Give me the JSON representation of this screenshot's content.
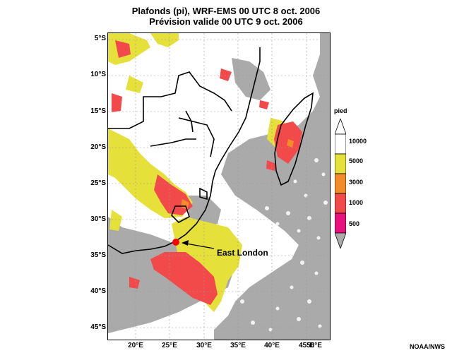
{
  "title": {
    "line1": "Plafonds (pi), WRF-EMS 00 UTC 8 oct. 2006",
    "line2": "Prévision valide 00 UTC 9 oct. 2006"
  },
  "axes": {
    "lat_labels": [
      "5°S",
      "10°S",
      "15°S",
      "20°S",
      "25°S",
      "30°S",
      "35°S",
      "40°S",
      "45°S"
    ],
    "lon_labels": [
      "20°E",
      "25°E",
      "30°E",
      "35°E",
      "40°E",
      "45°E",
      "50°E"
    ]
  },
  "legend": {
    "title": "pied",
    "levels": [
      "10000",
      "5000",
      "3000",
      "1000",
      "500"
    ],
    "colors": [
      "#e6e03a",
      "#f28c28",
      "#f24a4a",
      "#e8127f",
      "#aaaaaa"
    ]
  },
  "annotation": {
    "label": "East London"
  },
  "credit": "NOAA/NWS"
}
